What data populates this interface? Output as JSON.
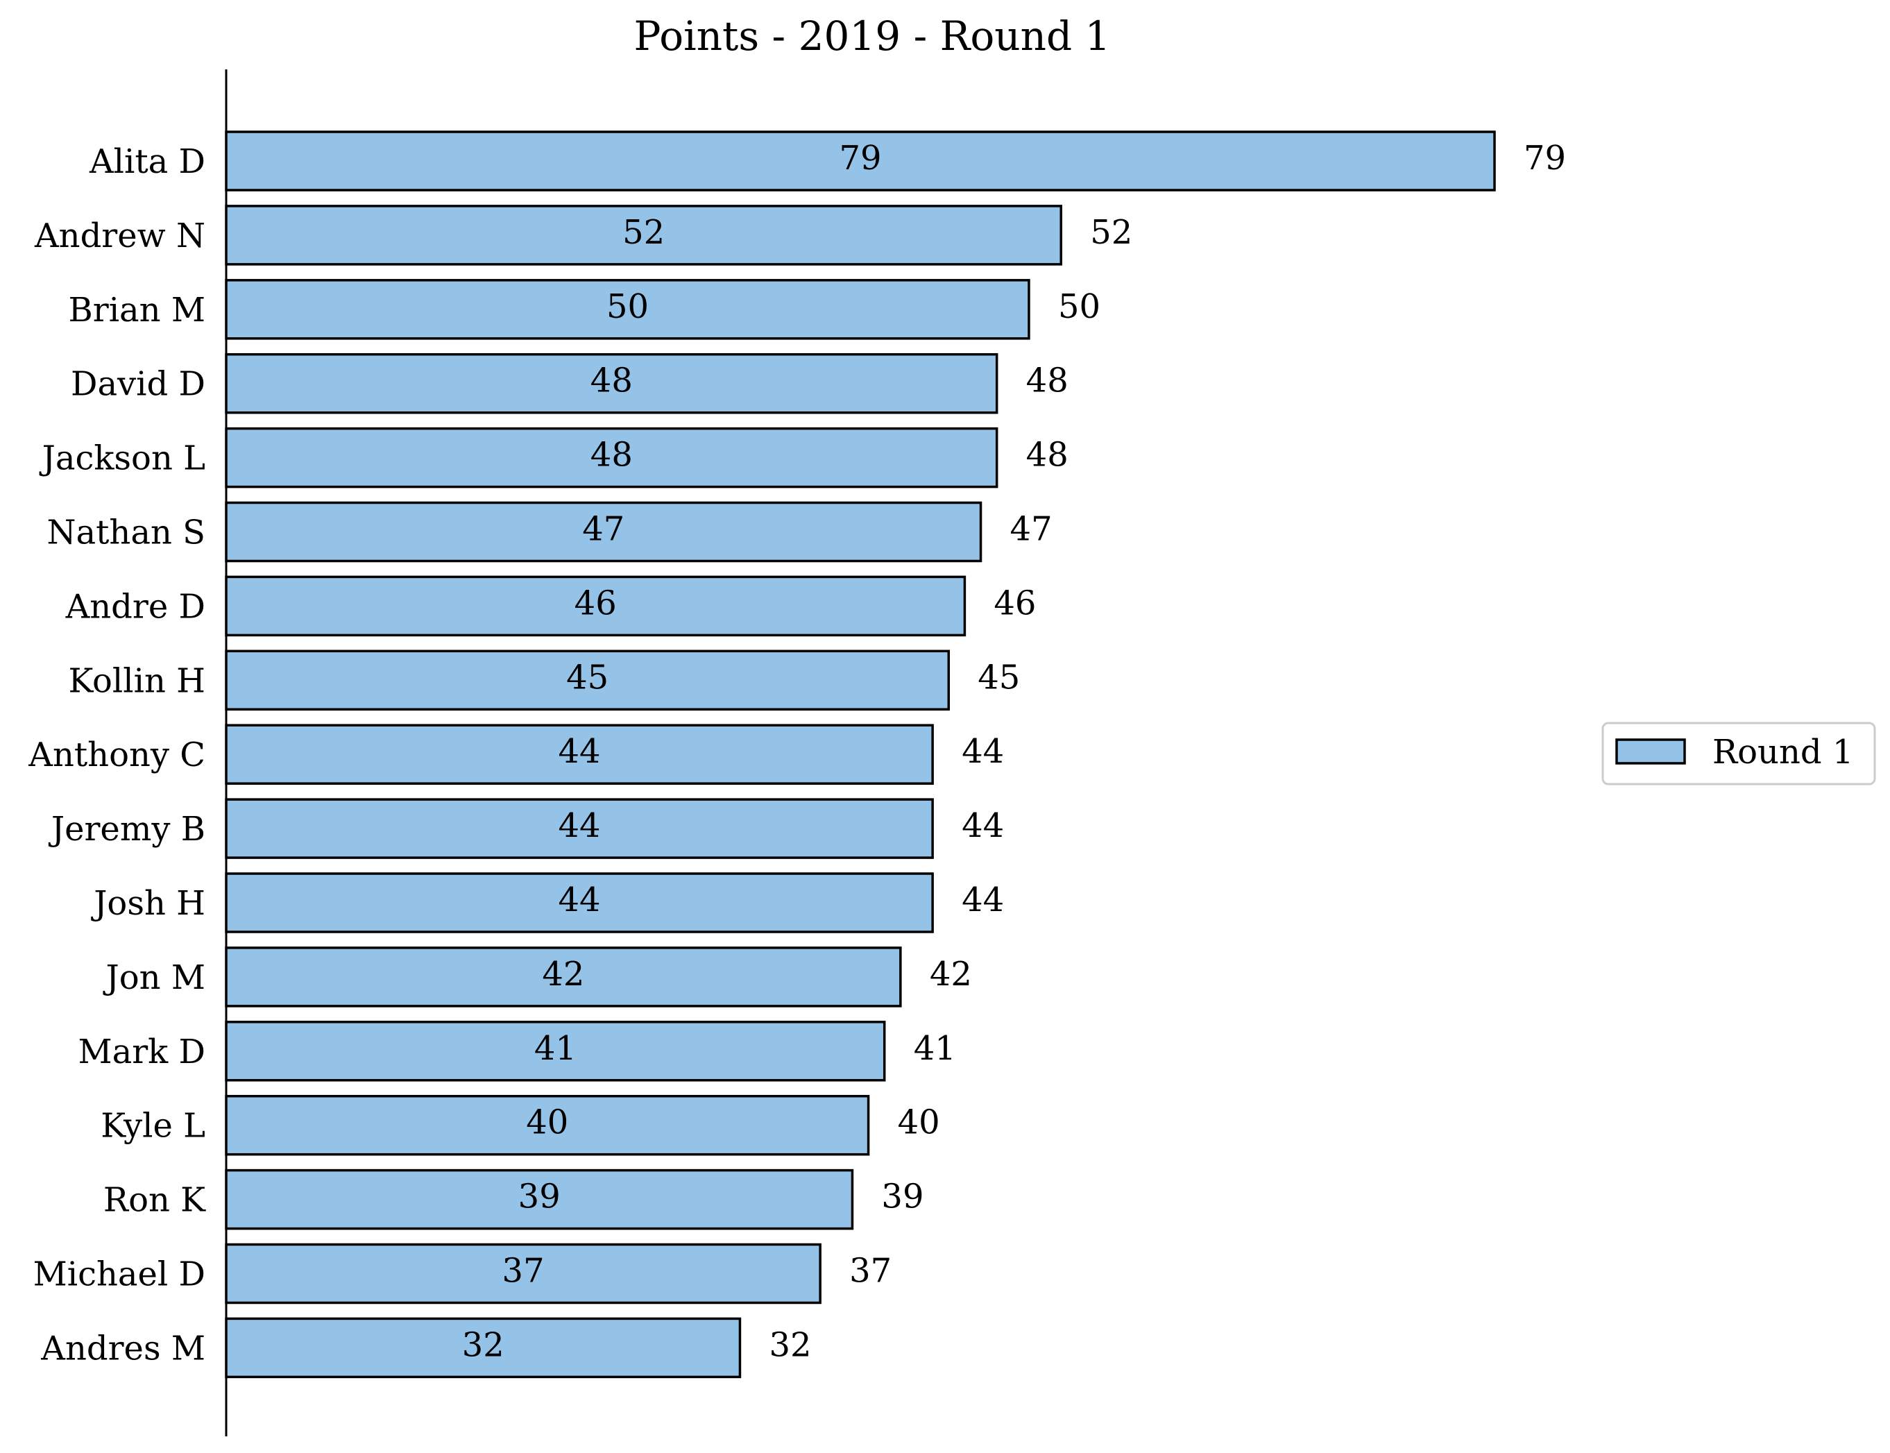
{
  "chart_data": {
    "type": "bar",
    "orientation": "horizontal",
    "title": "Points - 2019 - Round 1",
    "xlabel": "",
    "ylabel": "",
    "categories": [
      "Alita D",
      "Andrew N",
      "Brian M",
      "David D",
      "Jackson L",
      "Nathan S",
      "Andre D",
      "Kollin H",
      "Anthony C",
      "Jeremy B",
      "Josh H",
      "Jon M",
      "Mark D",
      "Kyle L",
      "Ron K",
      "Michael D",
      "Andres M"
    ],
    "series": [
      {
        "name": "Round 1",
        "color": "#95c3e8",
        "values": [
          79,
          52,
          50,
          48,
          48,
          47,
          46,
          45,
          44,
          44,
          44,
          42,
          41,
          40,
          39,
          37,
          32
        ]
      }
    ],
    "xlim": [
      0,
      79
    ],
    "grid": false,
    "legend": "center-right",
    "x_axis_visible": false,
    "value_labels": [
      "inside-center",
      "outside-end"
    ]
  }
}
